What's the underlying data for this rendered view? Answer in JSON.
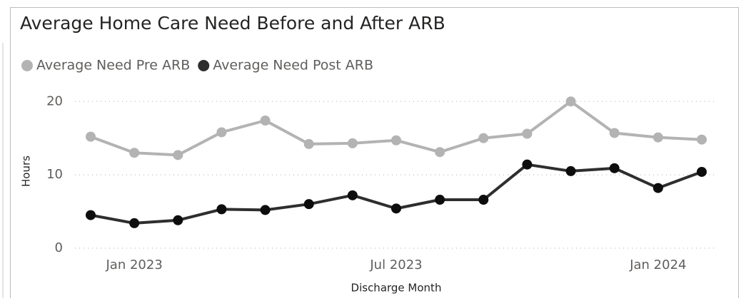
{
  "chart_data": {
    "type": "line",
    "title": "Average Home Care Need Before and After ARB",
    "x_label": "Discharge Month",
    "y_label": "Hours",
    "categories": [
      null,
      "Jan 2023",
      null,
      null,
      null,
      null,
      null,
      "Jul 2023",
      null,
      null,
      null,
      null,
      null,
      "Jan 2024",
      null
    ],
    "series": [
      {
        "name": "Average Need Pre ARB",
        "color": "#b3b3b3",
        "values": [
          15.2,
          13.0,
          12.7,
          15.8,
          17.4,
          14.2,
          14.3,
          14.7,
          13.1,
          15.0,
          15.6,
          20.0,
          15.7,
          15.1,
          14.8
        ]
      },
      {
        "name": "Average Need Post ARB",
        "color": "#2e2e2e",
        "values": [
          4.5,
          3.4,
          3.8,
          5.3,
          5.2,
          6.0,
          7.2,
          5.4,
          6.6,
          6.6,
          11.4,
          10.5,
          10.9,
          8.2,
          10.4
        ]
      }
    ],
    "ylim": [
      -0.5,
      21
    ],
    "yticks": [
      0,
      10,
      20
    ],
    "grid": true,
    "legend": "top-left"
  }
}
